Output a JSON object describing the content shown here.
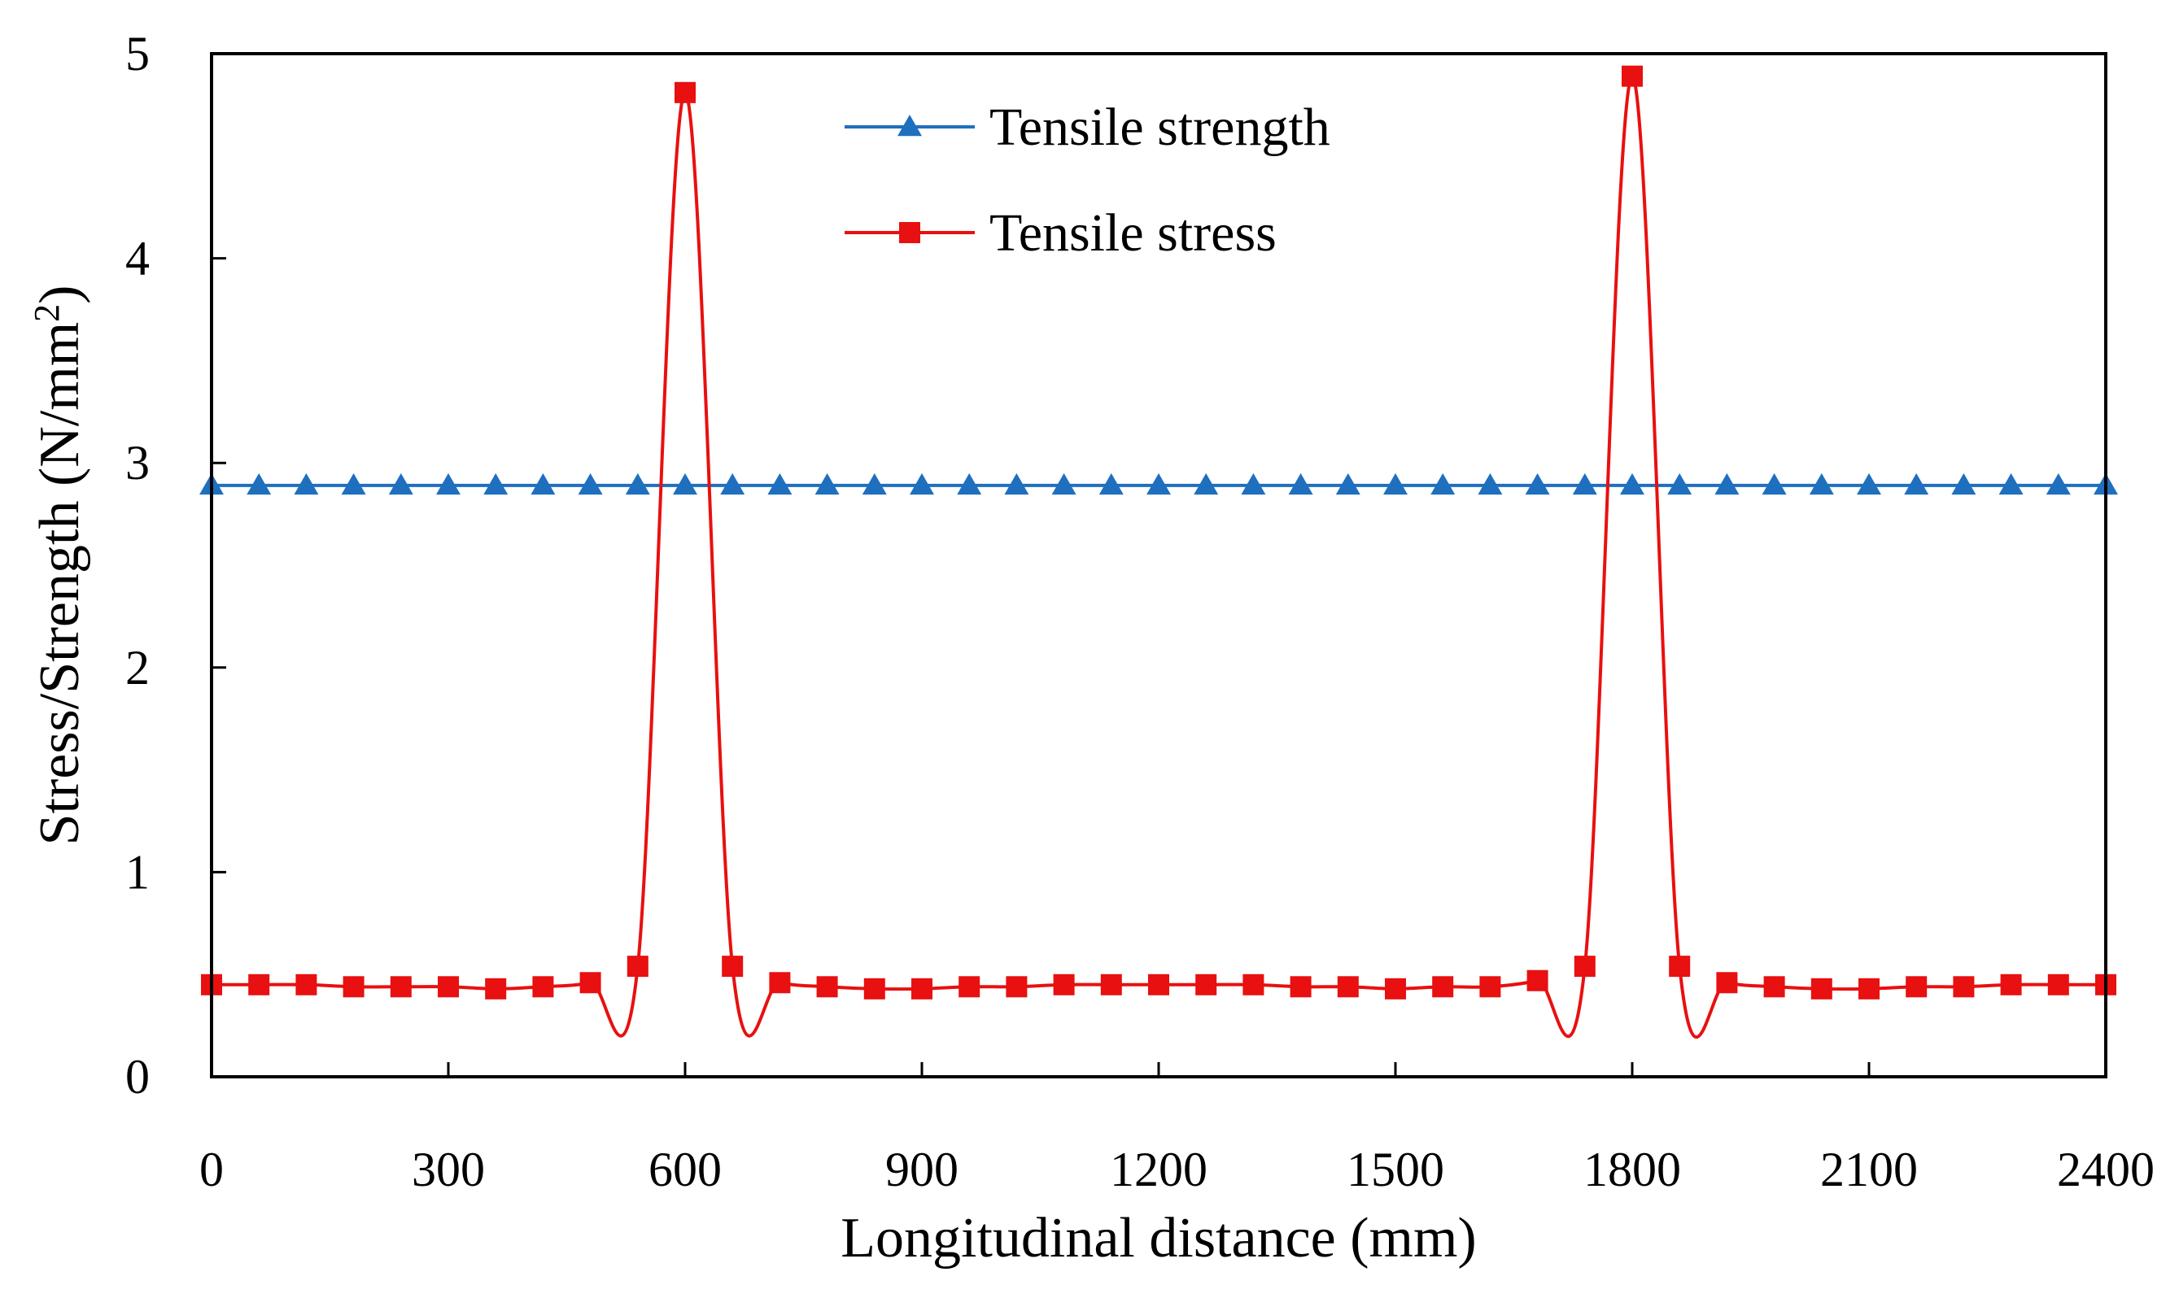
{
  "chart_data": {
    "type": "line",
    "xlabel": "Longitudinal distance (mm)",
    "ylabel": "Stress/Strength (N/mm",
    "ylabel_sup": "2",
    "ylabel_close": ")",
    "xlim": [
      0,
      2400
    ],
    "ylim": [
      0,
      5
    ],
    "xticks": [
      0,
      300,
      600,
      900,
      1200,
      1500,
      1800,
      2100,
      2400
    ],
    "yticks": [
      0,
      1,
      2,
      3,
      4,
      5
    ],
    "grid": false,
    "legend_position": "top-center",
    "series": [
      {
        "name": "Tensile strength",
        "color": "#1f6fbf",
        "marker": "triangle",
        "x": [
          0,
          60,
          120,
          180,
          240,
          300,
          360,
          420,
          480,
          540,
          600,
          660,
          720,
          780,
          840,
          900,
          960,
          1020,
          1080,
          1140,
          1200,
          1260,
          1320,
          1380,
          1440,
          1500,
          1560,
          1620,
          1680,
          1740,
          1800,
          1860,
          1920,
          1980,
          2040,
          2100,
          2160,
          2220,
          2280,
          2340,
          2400
        ],
        "y": [
          2.89,
          2.89,
          2.89,
          2.89,
          2.89,
          2.89,
          2.89,
          2.89,
          2.89,
          2.89,
          2.89,
          2.89,
          2.89,
          2.89,
          2.89,
          2.89,
          2.89,
          2.89,
          2.89,
          2.89,
          2.89,
          2.89,
          2.89,
          2.89,
          2.89,
          2.89,
          2.89,
          2.89,
          2.89,
          2.89,
          2.89,
          2.89,
          2.89,
          2.89,
          2.89,
          2.89,
          2.89,
          2.89,
          2.89,
          2.89,
          2.89
        ]
      },
      {
        "name": "Tensile stress",
        "color": "#e81010",
        "marker": "square",
        "x": [
          0,
          60,
          120,
          180,
          240,
          300,
          360,
          420,
          480,
          540,
          600,
          660,
          720,
          780,
          840,
          900,
          960,
          1020,
          1080,
          1140,
          1200,
          1260,
          1320,
          1380,
          1440,
          1500,
          1560,
          1620,
          1680,
          1740,
          1800,
          1860,
          1920,
          1980,
          2040,
          2100,
          2160,
          2220,
          2280,
          2340,
          2400
        ],
        "y": [
          0.45,
          0.45,
          0.45,
          0.44,
          0.44,
          0.44,
          0.43,
          0.44,
          0.46,
          0.54,
          4.81,
          0.54,
          0.46,
          0.44,
          0.43,
          0.43,
          0.44,
          0.44,
          0.45,
          0.45,
          0.45,
          0.45,
          0.45,
          0.44,
          0.44,
          0.43,
          0.44,
          0.44,
          0.47,
          0.54,
          4.89,
          0.54,
          0.46,
          0.44,
          0.43,
          0.43,
          0.44,
          0.44,
          0.45,
          0.45,
          0.45
        ]
      }
    ]
  }
}
